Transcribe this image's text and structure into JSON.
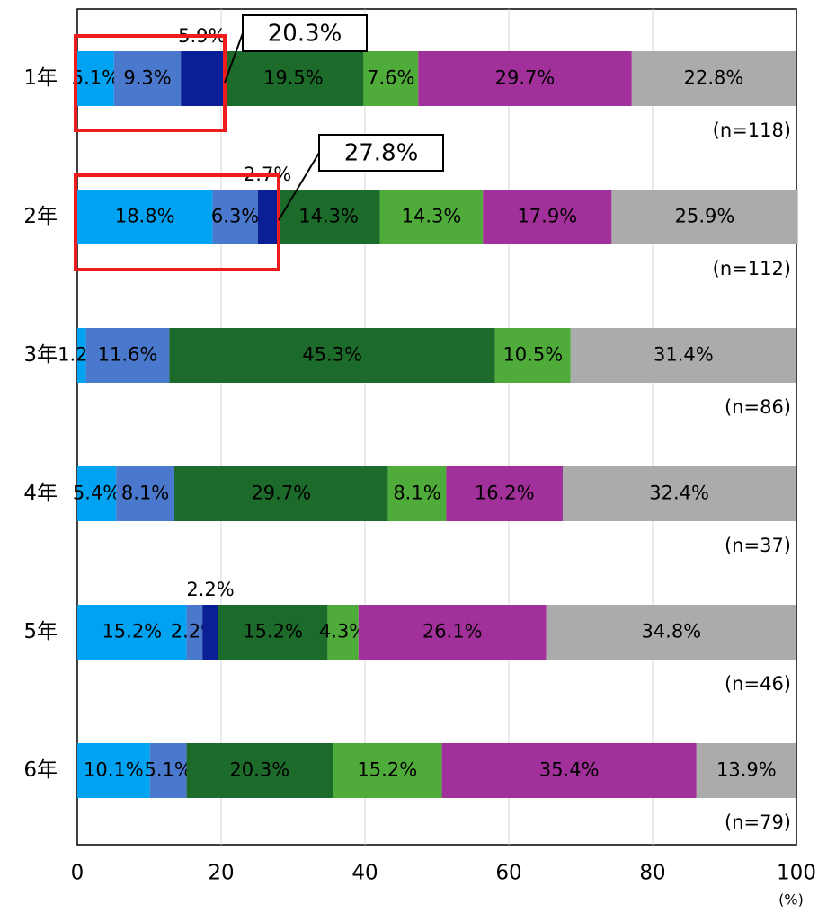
{
  "chart_data": {
    "type": "stacked-barh",
    "categories": [
      "1年",
      "2年",
      "3年",
      "4年",
      "5年",
      "6年"
    ],
    "series": [
      {
        "color": "#00a2f2",
        "values": [
          5.1,
          18.8,
          1.2,
          5.4,
          15.2,
          10.1
        ],
        "value_labels": [
          "5.1%",
          "18.8%",
          "1.2%",
          "5.4%",
          "15.2%",
          "10.1%"
        ]
      },
      {
        "color": "#4a78cc",
        "values": [
          9.3,
          6.3,
          11.6,
          8.1,
          2.2,
          5.1
        ],
        "value_labels": [
          "9.3%",
          "6.3%",
          "11.6%",
          "8.1%",
          "2.2%",
          "5.1%"
        ]
      },
      {
        "color": "#0a1f96",
        "values": [
          5.9,
          2.7,
          null,
          null,
          2.2,
          null
        ],
        "value_labels": [
          "5.9%",
          "2.7%",
          null,
          null,
          "2.2%",
          null
        ]
      },
      {
        "color": "#1d6b2a",
        "values": [
          19.5,
          14.3,
          45.3,
          29.7,
          15.2,
          20.3
        ],
        "value_labels": [
          "19.5%",
          "14.3%",
          "45.3%",
          "29.7%",
          "15.2%",
          "20.3%"
        ]
      },
      {
        "color": "#4fac3a",
        "values": [
          7.6,
          14.3,
          10.5,
          8.1,
          4.3,
          15.2
        ],
        "value_labels": [
          "7.6%",
          "14.3%",
          "10.5%",
          "8.1%",
          "4.3%",
          "15.2%"
        ]
      },
      {
        "color": "#a2309a",
        "values": [
          29.7,
          17.9,
          null,
          16.2,
          26.1,
          35.4
        ],
        "value_labels": [
          "29.7%",
          "17.9%",
          null,
          "16.2%",
          "26.1%",
          "35.4%"
        ]
      },
      {
        "color": "#ababab",
        "values": [
          22.8,
          25.9,
          31.4,
          32.4,
          34.8,
          13.9
        ],
        "value_labels": [
          "22.8%",
          "25.9%",
          "31.4%",
          "32.4%",
          "34.8%",
          "13.9%"
        ]
      }
    ],
    "n_labels": [
      "(n=118)",
      "(n=112)",
      "(n=86)",
      "(n=37)",
      "(n=46)",
      "(n=79)"
    ],
    "annotations": [
      "20.3%",
      "27.8%"
    ],
    "xlim": [
      0,
      100
    ],
    "xticks": [
      0,
      20,
      40,
      60,
      80,
      100
    ],
    "x_unit": "(%)",
    "grid": true
  }
}
